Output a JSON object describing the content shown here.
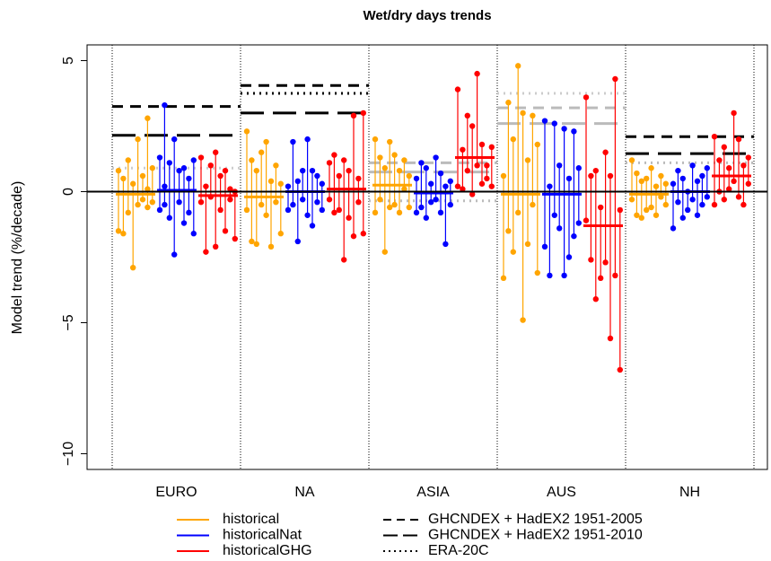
{
  "chart_data": {
    "type": "dotrange",
    "title": "Wet/dry days trends",
    "y_label": "Model trend (%/decade)",
    "ylim": [
      -10.6,
      5.6
    ],
    "yticks": [
      {
        "value": -10,
        "label": "−10"
      },
      {
        "value": -5,
        "label": "−5"
      },
      0,
      5
    ],
    "categories": [
      "EURO",
      "NA",
      "ASIA",
      "AUS",
      "NH"
    ],
    "series": [
      {
        "name": "historical",
        "color": "#ffa500",
        "means": [
          -0.1,
          -0.2,
          0.25,
          -0.1,
          -0.1
        ],
        "values": [
          [
            [
              0.8,
              -1.5
            ],
            [
              0.5,
              -1.6
            ],
            [
              1.2,
              -0.8
            ],
            [
              0.3,
              -2.9
            ],
            [
              2.0,
              -0.5
            ],
            [
              0.6,
              -0.3
            ],
            [
              2.8,
              0.1,
              -0.6
            ],
            [
              0.9,
              -0.4
            ]
          ],
          [
            [
              2.3,
              -0.7
            ],
            [
              1.2,
              -1.9
            ],
            [
              0.8,
              -2.0
            ],
            [
              1.5,
              -0.5
            ],
            [
              1.9,
              -0.9
            ],
            [
              0.4,
              -2.1
            ],
            [
              1.0,
              -0.4
            ],
            [
              0.3,
              -1.6
            ]
          ],
          [
            [
              2.0,
              -0.8
            ],
            [
              1.3,
              -0.3
            ],
            [
              0.9,
              -2.3
            ],
            [
              1.9,
              -0.6
            ],
            [
              1.4,
              -0.5
            ],
            [
              0.8,
              -0.8
            ],
            [
              1.2,
              0.1
            ],
            [
              0.6,
              -0.6
            ]
          ],
          [
            [
              0.6,
              -3.3
            ],
            [
              3.4,
              -1.5
            ],
            [
              2.0,
              -2.3
            ],
            [
              4.8,
              -0.8
            ],
            [
              3.0,
              -4.9
            ],
            [
              1.2,
              -2.0
            ],
            [
              2.9,
              -0.5
            ],
            [
              1.8,
              -3.1
            ]
          ],
          [
            [
              1.2,
              -0.3
            ],
            [
              0.7,
              -0.9
            ],
            [
              0.4,
              -1.0
            ],
            [
              0.5,
              -0.7
            ],
            [
              0.9,
              -0.6
            ],
            [
              0.2,
              -0.9
            ],
            [
              0.6,
              -0.2
            ],
            [
              0.3,
              -0.5
            ]
          ]
        ]
      },
      {
        "name": "historicalNat",
        "color": "#0000ff",
        "means": [
          0.05,
          0,
          -0.05,
          -0.1,
          0
        ],
        "values": [
          [
            [
              1.3,
              -0.7
            ],
            [
              3.3,
              0.2,
              -0.5
            ],
            [
              1.1,
              -1.0
            ],
            [
              2.0,
              -2.4
            ],
            [
              0.8,
              -0.4
            ],
            [
              0.9,
              -1.2
            ],
            [
              0.5,
              -0.8
            ],
            [
              1.2,
              -1.6
            ]
          ],
          [
            [
              0.2,
              -0.7
            ],
            [
              1.9,
              -0.5
            ],
            [
              0.4,
              -1.9
            ],
            [
              0.8,
              -0.3
            ],
            [
              2.0,
              -0.9
            ],
            [
              0.8,
              -1.3
            ],
            [
              0.6,
              -0.4
            ],
            [
              0.3,
              -0.7
            ]
          ],
          [
            [
              0.5,
              -0.8
            ],
            [
              1.1,
              -0.6
            ],
            [
              0.9,
              -1.0
            ],
            [
              0.3,
              -0.4
            ],
            [
              1.3,
              -0.3
            ],
            [
              0.7,
              -0.8
            ],
            [
              0.2,
              -2.0
            ],
            [
              0.4,
              -0.5
            ]
          ],
          [
            [
              2.7,
              -2.1
            ],
            [
              0.2,
              -3.2
            ],
            [
              2.6,
              -0.9
            ],
            [
              1.0,
              -1.4
            ],
            [
              2.4,
              -3.2
            ],
            [
              0.5,
              -2.5
            ],
            [
              2.3,
              -1.7
            ],
            [
              0.9,
              -1.2
            ]
          ],
          [
            [
              0.3,
              -1.4
            ],
            [
              0.8,
              -0.4
            ],
            [
              0.5,
              -1.0
            ],
            [
              0.0,
              -0.7
            ],
            [
              1.0,
              -0.3
            ],
            [
              0.4,
              -0.9
            ],
            [
              0.6,
              -0.5
            ],
            [
              0.9,
              -0.2
            ]
          ]
        ]
      },
      {
        "name": "historicalGHG",
        "color": "#ff0000",
        "means": [
          -0.15,
          0.1,
          1.3,
          -1.3,
          0.6
        ],
        "values": [
          [
            [
              1.3,
              -0.4
            ],
            [
              0.2,
              -2.3
            ],
            [
              1.0,
              -0.2
            ],
            [
              1.5,
              -2.1
            ],
            [
              0.6,
              -0.7
            ],
            [
              0.8,
              -1.5
            ],
            [
              0.1,
              -0.3
            ],
            [
              0.0,
              -1.8
            ]
          ],
          [
            [
              1.1,
              -0.3
            ],
            [
              1.4,
              -0.8
            ],
            [
              0.6,
              -0.7
            ],
            [
              1.2,
              -2.6
            ],
            [
              0.8,
              -1.0
            ],
            [
              2.9,
              -1.7
            ],
            [
              0.5,
              -0.4
            ],
            [
              3.0,
              -1.6
            ]
          ],
          [
            [
              3.9,
              0.2
            ],
            [
              1.6,
              0.1
            ],
            [
              2.9,
              0.8
            ],
            [
              2.5,
              -0.1
            ],
            [
              4.5,
              1.0
            ],
            [
              1.8,
              0.3
            ],
            [
              1.0,
              0.5
            ],
            [
              1.7,
              0.2
            ]
          ],
          [
            [
              3.6,
              -1.1
            ],
            [
              0.6,
              -2.6
            ],
            [
              0.8,
              -4.1
            ],
            [
              -0.6,
              -3.3
            ],
            [
              1.5,
              -2.7
            ],
            [
              0.6,
              -5.6
            ],
            [
              4.3,
              -3.2
            ],
            [
              -0.7,
              -6.8
            ]
          ],
          [
            [
              2.1,
              -0.5
            ],
            [
              1.2,
              0.0
            ],
            [
              1.7,
              -0.3
            ],
            [
              0.9,
              0.1
            ],
            [
              3.0,
              0.4
            ],
            [
              2.0,
              -0.2
            ],
            [
              1.0,
              -0.5
            ],
            [
              1.3,
              0.3
            ]
          ]
        ]
      }
    ],
    "references": [
      {
        "name": "GHCNDEX + HadEX2 1951-2005",
        "dash": "short",
        "values": [
          3.25,
          4.05,
          1.1,
          3.2,
          2.1
        ],
        "colors": [
          "#000000",
          "#000000",
          "#bbbbbb",
          "#bbbbbb",
          "#000000"
        ]
      },
      {
        "name": "GHCNDEX + HadEX2 1951-2010",
        "dash": "long",
        "values": [
          2.15,
          3.0,
          0.75,
          2.6,
          1.45
        ],
        "colors": [
          "#000000",
          "#000000",
          "#bbbbbb",
          "#bbbbbb",
          "#000000"
        ]
      },
      {
        "name": "ERA-20C",
        "dash": "dotted",
        "values": [
          0.9,
          3.75,
          -0.35,
          3.75,
          1.1
        ],
        "colors": [
          "#cccccc",
          "#000000",
          "#bbbbbb",
          "#cccccc",
          "#bbbbbb"
        ]
      }
    ]
  }
}
